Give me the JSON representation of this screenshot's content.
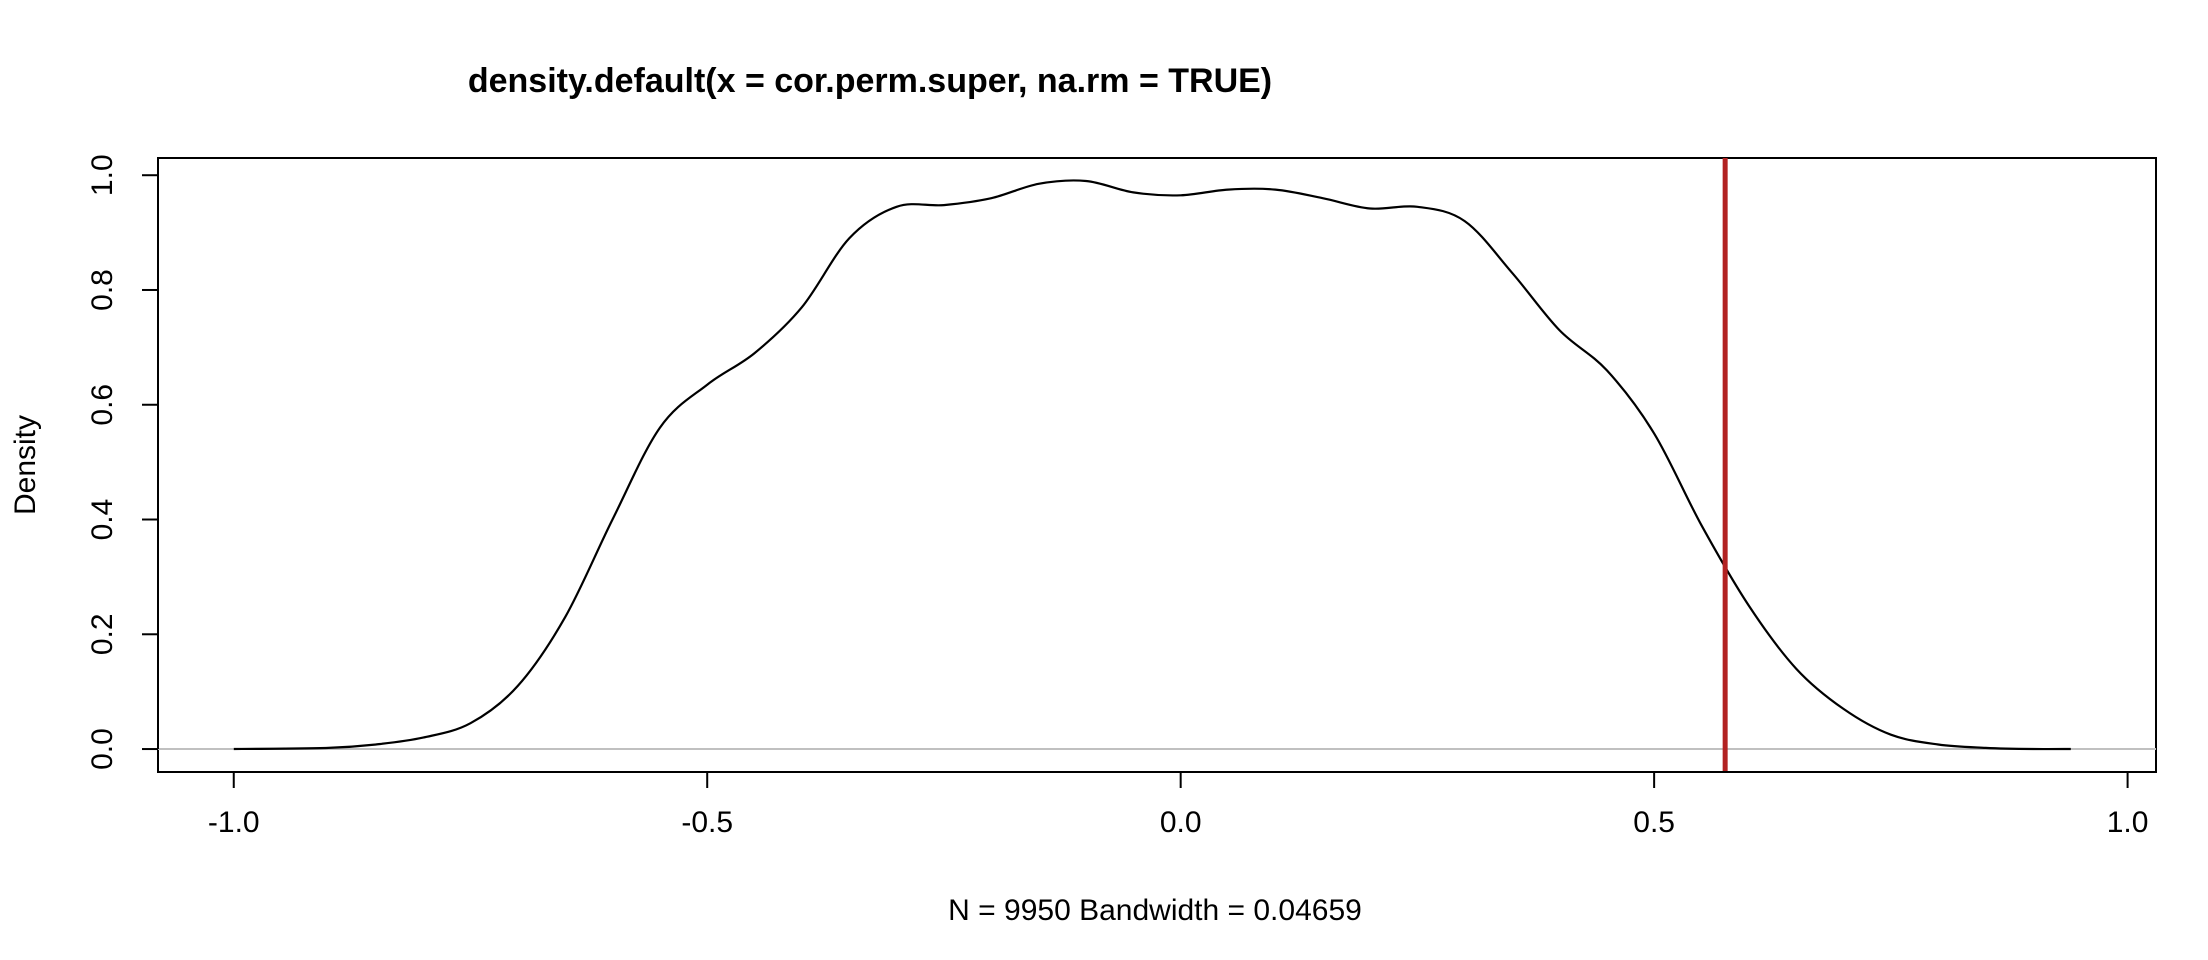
{
  "chart_data": {
    "type": "line",
    "title": "density.default(x = cor.perm.super, na.rm = TRUE)",
    "xlabel": "N = 9950   Bandwidth = 0.04659",
    "ylabel": "Density",
    "xlim": [
      -1.08,
      1.03
    ],
    "ylim": [
      -0.04,
      1.03
    ],
    "x_ticks": [
      "-1.0",
      "-0.5",
      "0.0",
      "0.5",
      "1.0"
    ],
    "x_tick_values": [
      -1.0,
      -0.5,
      0.0,
      0.5,
      1.0
    ],
    "y_ticks": [
      "0.0",
      "0.2",
      "0.4",
      "0.6",
      "0.8",
      "1.0"
    ],
    "y_tick_values": [
      0.0,
      0.2,
      0.4,
      0.6,
      0.8,
      1.0
    ],
    "grid": false,
    "series": [
      {
        "x": [
          -1.0,
          -0.9,
          -0.85,
          -0.8,
          -0.75,
          -0.7,
          -0.65,
          -0.6,
          -0.55,
          -0.5,
          -0.45,
          -0.4,
          -0.35,
          -0.3,
          -0.25,
          -0.2,
          -0.15,
          -0.1,
          -0.05,
          0.0,
          0.05,
          0.1,
          0.15,
          0.2,
          0.25,
          0.3,
          0.35,
          0.4,
          0.45,
          0.5,
          0.55,
          0.6,
          0.65,
          0.7,
          0.75,
          0.8,
          0.85,
          0.9,
          0.94
        ],
        "y": [
          0.0,
          0.002,
          0.008,
          0.02,
          0.045,
          0.11,
          0.23,
          0.4,
          0.56,
          0.635,
          0.69,
          0.77,
          0.89,
          0.945,
          0.948,
          0.96,
          0.985,
          0.99,
          0.97,
          0.965,
          0.975,
          0.975,
          0.96,
          0.942,
          0.945,
          0.92,
          0.83,
          0.73,
          0.66,
          0.55,
          0.39,
          0.25,
          0.14,
          0.07,
          0.025,
          0.008,
          0.002,
          0.0,
          0.0
        ],
        "color": "#000000"
      }
    ],
    "zero_line": {
      "y": 0.0,
      "color": "#c0c0c0"
    },
    "vline": {
      "x": 0.575,
      "color": "#b22222"
    }
  }
}
